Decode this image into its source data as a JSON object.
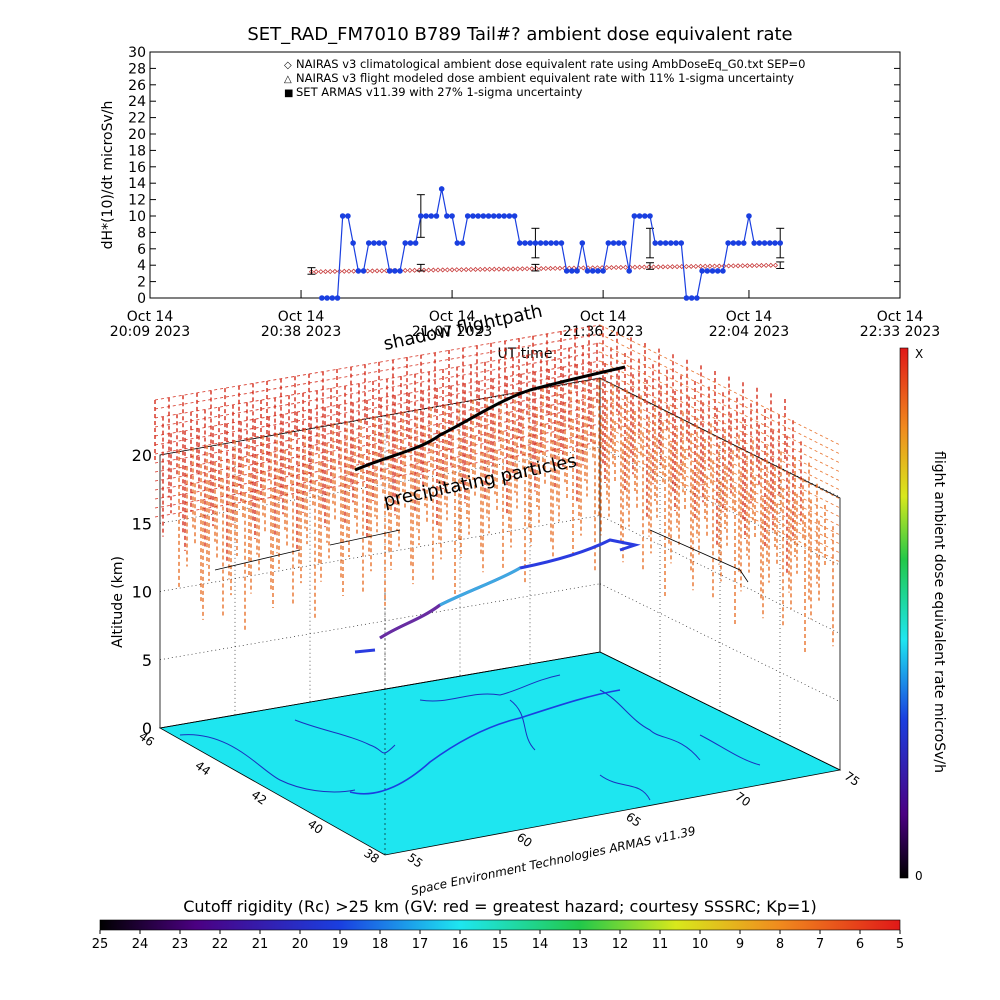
{
  "chart_data": [
    {
      "type": "line",
      "title": "SET_RAD_FM7010  B789 Tail#? ambient dose equivalent rate",
      "ylabel": "dH*(10)/dt microSv/h",
      "xlabel": "UT time",
      "ylim": [
        0,
        30
      ],
      "yticks": [
        0,
        2,
        4,
        6,
        8,
        10,
        12,
        14,
        16,
        18,
        20,
        22,
        24,
        26,
        28,
        30
      ],
      "xlim_minutes": [
        0,
        144
      ],
      "xtick_labels": [
        {
          "minute": 0,
          "line1": "Oct 14",
          "line2": "20:09 2023"
        },
        {
          "minute": 29,
          "line1": "Oct 14",
          "line2": "20:38 2023"
        },
        {
          "minute": 58,
          "line1": "Oct 14",
          "line2": "21:07 2023"
        },
        {
          "minute": 87,
          "line1": "Oct 14",
          "line2": "21:36 2023"
        },
        {
          "minute": 115,
          "line1": "Oct 14",
          "line2": "22:04 2023"
        },
        {
          "minute": 144,
          "line1": "Oct 14",
          "line2": "22:33 2023"
        }
      ],
      "legend": [
        {
          "symbol": "◇",
          "color": "#c83c3c",
          "label": "NAIRAS v3 climatological ambient dose equivalent rate using AmbDoseEq_G0.txt SEP=0"
        },
        {
          "symbol": "△",
          "color": "#000000",
          "label": "NAIRAS v3 flight modeled dose ambient equivalent rate with 11% 1-sigma uncertainty"
        },
        {
          "symbol": "■",
          "color": "#1a3fe0",
          "label": "SET ARMAS v11.39 with 27% 1-sigma uncertainty"
        }
      ],
      "legend_position": "top",
      "series": [
        {
          "name": "SET ARMAS v11.39 with 27% 1-sigma uncertainty",
          "color": "#1a3fe0",
          "x": [
            33,
            34,
            35,
            36,
            37,
            38,
            39,
            40,
            41,
            42,
            43,
            44,
            45,
            46,
            47,
            48,
            49,
            50,
            51,
            52,
            53,
            54,
            55,
            56,
            57,
            58,
            59,
            60,
            61,
            62,
            63,
            64,
            65,
            66,
            67,
            68,
            69,
            70,
            71,
            72,
            73,
            74,
            75,
            76,
            77,
            78,
            79,
            80,
            81,
            82,
            83,
            84,
            85,
            86,
            87,
            88,
            89,
            90,
            91,
            92,
            93,
            94,
            95,
            96,
            97,
            98,
            99,
            100,
            101,
            102,
            103,
            104,
            105,
            106,
            107,
            108,
            109,
            110,
            111,
            112,
            113,
            114,
            115,
            116,
            117,
            118,
            119,
            120,
            121
          ],
          "y": [
            0,
            0,
            0,
            0,
            10,
            10,
            6.7,
            3.3,
            3.3,
            6.7,
            6.7,
            6.7,
            6.7,
            3.3,
            3.3,
            3.3,
            6.7,
            6.7,
            6.7,
            10,
            10,
            10,
            10,
            13.3,
            10,
            10,
            6.7,
            6.7,
            10,
            10,
            10,
            10,
            10,
            10,
            10,
            10,
            10,
            10,
            6.7,
            6.7,
            6.7,
            6.7,
            6.7,
            6.7,
            6.7,
            6.7,
            6.7,
            3.3,
            3.3,
            3.3,
            6.7,
            3.3,
            3.3,
            3.3,
            3.3,
            6.7,
            6.7,
            6.7,
            6.7,
            3.3,
            10,
            10,
            10,
            10,
            6.7,
            6.7,
            6.7,
            6.7,
            6.7,
            6.7,
            0,
            0,
            0,
            3.3,
            3.3,
            3.3,
            3.3,
            3.3,
            6.7,
            6.7,
            6.7,
            6.7,
            10,
            6.7,
            6.7,
            6.7,
            6.7,
            6.7,
            6.7
          ]
        },
        {
          "name": "NAIRAS v3 climatological ambient dose equivalent rate using AmbDoseEq_G0.txt SEP=0",
          "color": "#c83c3c",
          "x": [
            31,
            121
          ],
          "y": [
            3.2,
            4.0
          ]
        }
      ],
      "errorbars": [
        {
          "x": 31,
          "y": 3.3,
          "err": 0.4
        },
        {
          "x": 52,
          "y": 10.0,
          "err": 2.6
        },
        {
          "x": 52,
          "y": 3.7,
          "err": 0.4
        },
        {
          "x": 74,
          "y": 6.7,
          "err": 1.8
        },
        {
          "x": 74,
          "y": 3.7,
          "err": 0.4
        },
        {
          "x": 96,
          "y": 6.7,
          "err": 1.8
        },
        {
          "x": 96,
          "y": 3.9,
          "err": 0.4
        },
        {
          "x": 121,
          "y": 6.7,
          "err": 1.8
        },
        {
          "x": 121,
          "y": 4.0,
          "err": 0.4
        }
      ]
    },
    {
      "type": "scatter",
      "subtype": "3d-flight-profile",
      "zlabel": "Altitude (km)",
      "zticks": [
        0,
        5,
        10,
        15,
        20
      ],
      "latitude_ticks": [
        38,
        40,
        42,
        44,
        46
      ],
      "longitude_ticks": [
        55,
        60,
        65,
        70,
        75
      ],
      "annotations": [
        "shadow flightpath",
        "precipitating particles"
      ],
      "credit": "Space Environment Technologies ARMAS v11.39",
      "colorbar_right": {
        "label": "flight ambient dose equivalent rate microSv/h",
        "top": "X",
        "bottom": "0"
      },
      "colorbar_bottom": {
        "label": "Cutoff rigidity (Rc) >25 km (GV: red = greatest hazard; courtesy SSSRC; Kp=1)",
        "ticks": [
          25,
          24,
          23,
          22,
          21,
          20,
          19,
          18,
          17,
          16,
          15,
          14,
          13,
          12,
          11,
          10,
          9,
          8,
          7,
          6,
          5
        ]
      },
      "colors": {
        "ground": "#1ee6f0",
        "flight_path": "#1a3fe0",
        "particles": "#e05a2a"
      }
    }
  ]
}
